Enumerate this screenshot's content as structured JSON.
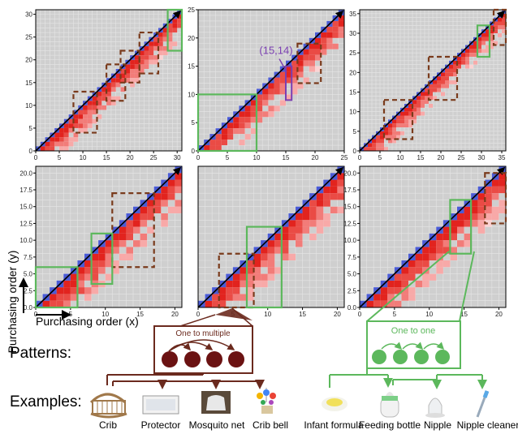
{
  "chart_data": [
    {
      "type": "heatmap",
      "panel": "top-left",
      "xlim": [
        0,
        31
      ],
      "ylim": [
        0,
        31
      ],
      "x_ticks": [
        0,
        5,
        10,
        15,
        20,
        25,
        30
      ],
      "y_ticks": [
        0,
        5,
        10,
        15,
        20,
        25,
        30
      ],
      "n": 31,
      "brown_boxes": [
        [
          8,
          4,
          13,
          13
        ],
        [
          15,
          11,
          19,
          19
        ],
        [
          18,
          15,
          22,
          22
        ],
        [
          22,
          17,
          26,
          26
        ]
      ],
      "green_boxes": [
        [
          28,
          22,
          31,
          31
        ]
      ],
      "annotations": []
    },
    {
      "type": "heatmap",
      "panel": "top-middle",
      "xlim": [
        0,
        25
      ],
      "ylim": [
        0,
        25
      ],
      "x_ticks": [
        0,
        5,
        10,
        15,
        20,
        25
      ],
      "y_ticks": [
        0,
        5,
        10,
        15,
        20,
        25
      ],
      "n": 25,
      "brown_boxes": [
        [
          17,
          12,
          21,
          19
        ]
      ],
      "green_boxes": [
        [
          0,
          0,
          10,
          10
        ]
      ],
      "purple_boxes": [
        [
          15,
          9,
          16,
          15
        ]
      ],
      "annotations": [
        {
          "text": "(15,14)",
          "x": 15,
          "y": 14
        }
      ]
    },
    {
      "type": "heatmap",
      "panel": "top-right",
      "xlim": [
        0,
        36
      ],
      "ylim": [
        0,
        36
      ],
      "x_ticks": [
        0,
        5,
        10,
        15,
        20,
        25,
        30,
        35
      ],
      "y_ticks": [
        0,
        5,
        10,
        15,
        20,
        25,
        30,
        35
      ],
      "n": 36,
      "brown_boxes": [
        [
          6,
          3,
          13,
          13
        ],
        [
          17,
          13,
          24,
          24
        ],
        [
          33,
          27,
          36,
          36
        ]
      ],
      "green_boxes": [
        [
          29,
          24,
          32,
          32
        ]
      ],
      "annotations": []
    },
    {
      "type": "heatmap",
      "panel": "bottom-left",
      "xlim": [
        0,
        21
      ],
      "ylim": [
        0,
        21
      ],
      "x_ticks": [
        0,
        5,
        10,
        15,
        20
      ],
      "y_ticks": [
        0.0,
        2.5,
        5.0,
        7.5,
        10.0,
        12.5,
        15.0,
        17.5,
        20.0
      ],
      "n": 21,
      "brown_boxes": [
        [
          11,
          6,
          17,
          17
        ]
      ],
      "green_boxes": [
        [
          0,
          0,
          6,
          6
        ],
        [
          8,
          3.5,
          11,
          11
        ]
      ],
      "annotations": []
    },
    {
      "type": "heatmap",
      "panel": "bottom-middle",
      "xlim": [
        0,
        21
      ],
      "ylim": [
        0,
        21
      ],
      "x_ticks": [
        0,
        5,
        10,
        15,
        20
      ],
      "y_ticks": [],
      "n": 21,
      "brown_boxes": [
        [
          3,
          0,
          8,
          8
        ]
      ],
      "green_boxes": [
        [
          7,
          0,
          12,
          12
        ]
      ],
      "annotations": []
    },
    {
      "type": "heatmap",
      "panel": "bottom-right",
      "xlim": [
        0,
        21
      ],
      "ylim": [
        0,
        21
      ],
      "x_ticks": [
        0,
        5,
        10,
        15,
        20
      ],
      "y_ticks": [
        0.0,
        2.5,
        5.0,
        7.5,
        10.0,
        12.5,
        15.0,
        17.5,
        20.0
      ],
      "n": 21,
      "brown_boxes": [
        [
          18,
          12.5,
          21,
          20
        ]
      ],
      "green_boxes": [
        [
          13,
          8,
          16,
          16
        ]
      ],
      "annotations": []
    }
  ],
  "labels": {
    "ylabel": "Purchasing order (y)",
    "xlabel": "Purchasing order (x)",
    "patterns": "Patterns:",
    "examples": "Examples:",
    "one_to_multiple": "One to multiple",
    "one_to_one": "One to one"
  },
  "examples": {
    "left": [
      "Crib",
      "Protector",
      "Mosquito net",
      "Crib bell"
    ],
    "right": [
      "Infant formula",
      "Feeding bottle",
      "Nipple",
      "Nipple cleaner"
    ]
  },
  "colors": {
    "brown": "#6b2a1e",
    "brown_dash": "#7a3b1c",
    "green": "#5cb85c",
    "purple": "#7b3fb2",
    "grid_bg": "#cfcfcf",
    "blue": "#4a5bd6",
    "red_dark": "#e8322a"
  }
}
